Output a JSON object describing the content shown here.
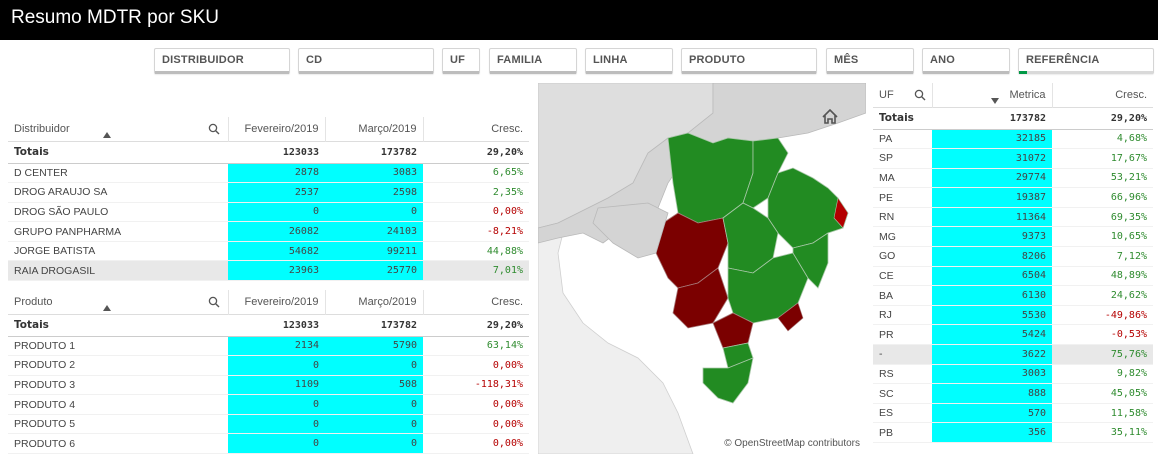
{
  "header": {
    "title": "Resumo MDTR por SKU"
  },
  "filters": [
    {
      "label": "DISTRIBUIDOR"
    },
    {
      "label": "CD"
    },
    {
      "label": "UF"
    },
    {
      "label": "FAMILIA"
    },
    {
      "label": "LINHA"
    },
    {
      "label": "PRODUTO"
    },
    {
      "label": "MÊS"
    },
    {
      "label": "ANO"
    },
    {
      "label": "REFERÊNCIA"
    }
  ],
  "distribuidor_table": {
    "headers": [
      "Distribuidor",
      "Fevereiro/2019",
      "Março/2019",
      "Cresc."
    ],
    "totals": [
      "Totais",
      "123033",
      "173782",
      "29,20%"
    ],
    "rows": [
      [
        "D CENTER",
        "2878",
        "3083",
        "6,65%"
      ],
      [
        "DROG ARAUJO SA",
        "2537",
        "2598",
        "2,35%"
      ],
      [
        "DROG SÃO PAULO",
        "0",
        "0",
        "0,00%"
      ],
      [
        "GRUPO PANPHARMA",
        "26082",
        "24103",
        "-8,21%"
      ],
      [
        "JORGE BATISTA",
        "54682",
        "99211",
        "44,88%"
      ],
      [
        "RAIA DROGASIL",
        "23963",
        "25770",
        "7,01%"
      ]
    ]
  },
  "produto_table": {
    "headers": [
      "Produto",
      "Fevereiro/2019",
      "Março/2019",
      "Cresc."
    ],
    "totals": [
      "Totais",
      "123033",
      "173782",
      "29,20%"
    ],
    "rows": [
      [
        "PRODUTO 1",
        "2134",
        "5790",
        "63,14%"
      ],
      [
        "PRODUTO 2",
        "0",
        "0",
        "0,00%"
      ],
      [
        "PRODUTO 3",
        "1109",
        "508",
        "-118,31%"
      ],
      [
        "PRODUTO 4",
        "0",
        "0",
        "0,00%"
      ],
      [
        "PRODUTO 5",
        "0",
        "0",
        "0,00%"
      ],
      [
        "PRODUTO 6",
        "0",
        "0",
        "0,00%"
      ]
    ]
  },
  "uf_table": {
    "headers": [
      "UF",
      "Metrica",
      "Cresc."
    ],
    "totals": [
      "Totais",
      "173782",
      "29,20%"
    ],
    "rows": [
      [
        "PA",
        "32185",
        "4,68%"
      ],
      [
        "SP",
        "31072",
        "17,67%"
      ],
      [
        "MA",
        "29774",
        "53,21%"
      ],
      [
        "PE",
        "19387",
        "66,96%"
      ],
      [
        "RN",
        "11364",
        "69,35%"
      ],
      [
        "MG",
        "9373",
        "10,65%"
      ],
      [
        "GO",
        "8206",
        "7,12%"
      ],
      [
        "CE",
        "6504",
        "48,89%"
      ],
      [
        "BA",
        "6130",
        "24,62%"
      ],
      [
        "RJ",
        "5530",
        "-49,86%"
      ],
      [
        "PR",
        "5424",
        "-0,53%"
      ],
      [
        "-",
        "3622",
        "75,76%"
      ],
      [
        "RS",
        "3003",
        "9,82%"
      ],
      [
        "SC",
        "888",
        "45,05%"
      ],
      [
        "ES",
        "570",
        "11,58%"
      ],
      [
        "PB",
        "356",
        "35,11%"
      ]
    ]
  },
  "map": {
    "attribution": "© OpenStreetMap contributors",
    "colors": {
      "positive": "#228b22",
      "negative": "#7b0000",
      "none": "#d4d4d4"
    }
  }
}
